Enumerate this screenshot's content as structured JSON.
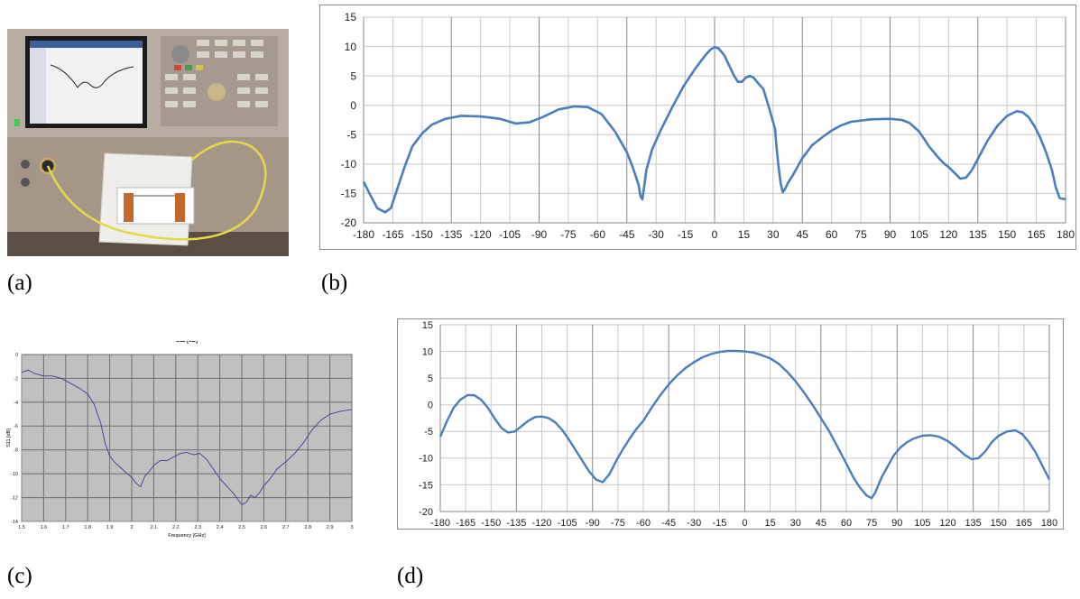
{
  "captions": {
    "a": "(a)",
    "b": "(b)",
    "c": "(c)",
    "d": "(d)"
  },
  "colors": {
    "line": "#4a7ebb",
    "s11_line": "#3d3d9a",
    "s11_bg": "#c0c0c0",
    "grid": "#c8c8c8"
  },
  "chart_data": [
    {
      "id": "b",
      "type": "line",
      "title": "",
      "xlabel": "",
      "ylabel": "",
      "xlim": [
        -180,
        180
      ],
      "ylim": [
        -20,
        15
      ],
      "xticks": [
        -180,
        -165,
        -150,
        -135,
        -120,
        -105,
        -90,
        -75,
        -60,
        -45,
        -30,
        -15,
        0,
        15,
        30,
        45,
        60,
        75,
        90,
        105,
        120,
        135,
        150,
        165,
        180
      ],
      "yticks": [
        15,
        10,
        5,
        0,
        -5,
        -10,
        -15,
        -20
      ],
      "grid": true,
      "series": [
        {
          "x": [
            -180,
            -177,
            -173,
            -169,
            -166,
            -163,
            -159,
            -155,
            -150,
            -145,
            -138,
            -130,
            -120,
            -110,
            -102,
            -95,
            -88,
            -80,
            -72,
            -65,
            -58,
            -51,
            -45,
            -42,
            -39,
            -38,
            -37,
            -35,
            -32,
            -28,
            -22,
            -16,
            -10,
            -5,
            -2,
            0,
            2,
            5,
            8,
            10,
            12,
            14,
            16,
            18,
            20,
            23,
            25,
            28,
            31,
            32,
            33,
            34,
            35,
            36,
            38,
            40,
            45,
            50,
            55,
            60,
            65,
            70,
            80,
            90,
            96,
            100,
            105,
            110,
            115,
            118,
            120,
            123,
            126,
            129,
            132,
            136,
            140,
            145,
            150,
            155,
            158,
            161,
            164,
            167,
            170,
            173,
            175,
            177,
            180
          ],
          "y": [
            -13,
            -15,
            -17.5,
            -18.2,
            -17.5,
            -14.5,
            -10.5,
            -7,
            -4.8,
            -3.3,
            -2.3,
            -1.8,
            -1.9,
            -2.3,
            -3.1,
            -2.9,
            -2.0,
            -0.7,
            -0.2,
            -0.3,
            -1.5,
            -4.5,
            -8.0,
            -10.5,
            -13.5,
            -15.5,
            -16.0,
            -11,
            -7.5,
            -4.5,
            -0.5,
            3.2,
            6.2,
            8.4,
            9.5,
            9.9,
            9.7,
            8.5,
            6.4,
            5.0,
            4.0,
            4.0,
            4.7,
            5.0,
            4.7,
            3.5,
            2.8,
            -0.5,
            -4.0,
            -8.0,
            -11,
            -13.5,
            -14.8,
            -14.3,
            -13.0,
            -12.0,
            -9.0,
            -6.8,
            -5.5,
            -4.3,
            -3.4,
            -2.8,
            -2.4,
            -2.3,
            -2.5,
            -3.0,
            -4.5,
            -7.0,
            -9.0,
            -10.0,
            -10.5,
            -11.5,
            -12.5,
            -12.3,
            -11.0,
            -8.5,
            -6.0,
            -3.5,
            -1.8,
            -1.0,
            -1.2,
            -2.0,
            -3.5,
            -5.5,
            -8.0,
            -11.0,
            -14.0,
            -15.8,
            -16.0
          ]
        }
      ]
    },
    {
      "id": "c",
      "type": "line",
      "title": "S11 [dB]",
      "xlabel": "Frequency [GHz]",
      "ylabel": "S11 [dB]",
      "xlim": [
        1.5,
        3
      ],
      "ylim": [
        -14,
        0
      ],
      "xticks": [
        "1.5",
        "1.6",
        "1.7",
        "1.8",
        "1.9",
        "2",
        "2.1",
        "2.2",
        "2.3",
        "2.4",
        "2.5",
        "2.6",
        "2.7",
        "2.8",
        "2.9",
        "3"
      ],
      "yticks": [
        "0",
        "-2",
        "-4",
        "-6",
        "-8",
        "-10",
        "-12",
        "-14"
      ],
      "grid": true,
      "series": [
        {
          "x": [
            1.5,
            1.53,
            1.56,
            1.6,
            1.64,
            1.68,
            1.72,
            1.76,
            1.8,
            1.83,
            1.86,
            1.88,
            1.9,
            1.92,
            1.95,
            1.98,
            2.0,
            2.02,
            2.04,
            2.06,
            2.08,
            2.1,
            2.13,
            2.16,
            2.19,
            2.22,
            2.25,
            2.28,
            2.31,
            2.34,
            2.37,
            2.4,
            2.43,
            2.46,
            2.48,
            2.5,
            2.52,
            2.54,
            2.56,
            2.58,
            2.6,
            2.63,
            2.66,
            2.7,
            2.74,
            2.78,
            2.82,
            2.86,
            2.9,
            2.94,
            2.97,
            3.0
          ],
          "y": [
            -1.5,
            -1.3,
            -1.6,
            -1.8,
            -1.8,
            -2.0,
            -2.4,
            -2.8,
            -3.3,
            -4.2,
            -5.8,
            -7.5,
            -8.5,
            -9.0,
            -9.5,
            -10.0,
            -10.3,
            -10.8,
            -11.1,
            -10.2,
            -9.8,
            -9.3,
            -8.9,
            -8.9,
            -8.6,
            -8.3,
            -8.2,
            -8.4,
            -8.3,
            -8.8,
            -9.6,
            -10.4,
            -11.0,
            -11.6,
            -12.1,
            -12.6,
            -12.4,
            -11.8,
            -12.0,
            -11.6,
            -11.0,
            -10.4,
            -9.6,
            -9.0,
            -8.3,
            -7.4,
            -6.3,
            -5.5,
            -5.0,
            -4.8,
            -4.7,
            -4.6
          ]
        }
      ]
    },
    {
      "id": "d",
      "type": "line",
      "title": "",
      "xlabel": "",
      "ylabel": "",
      "xlim": [
        -180,
        180
      ],
      "ylim": [
        -20,
        15
      ],
      "xticks": [
        -180,
        -165,
        -150,
        -135,
        -120,
        -105,
        -90,
        -75,
        -60,
        -45,
        -30,
        -15,
        0,
        15,
        30,
        45,
        60,
        75,
        90,
        105,
        120,
        135,
        150,
        165,
        180
      ],
      "yticks": [
        15,
        10,
        5,
        0,
        -5,
        -10,
        -15,
        -20
      ],
      "grid": true,
      "series": [
        {
          "x": [
            -180,
            -176,
            -172,
            -168,
            -164,
            -160,
            -156,
            -152,
            -148,
            -144,
            -140,
            -136,
            -132,
            -128,
            -124,
            -120,
            -116,
            -112,
            -108,
            -104,
            -100,
            -96,
            -92,
            -88,
            -84,
            -80,
            -76,
            -72,
            -68,
            -64,
            -60,
            -55,
            -50,
            -45,
            -40,
            -35,
            -30,
            -25,
            -20,
            -15,
            -10,
            -5,
            0,
            5,
            10,
            15,
            20,
            25,
            30,
            35,
            40,
            45,
            50,
            55,
            60,
            64,
            68,
            72,
            75,
            77,
            79,
            81,
            84,
            88,
            92,
            96,
            100,
            105,
            110,
            115,
            120,
            125,
            130,
            134,
            138,
            142,
            146,
            150,
            155,
            160,
            164,
            168,
            172,
            176,
            180
          ],
          "y": [
            -6,
            -3,
            -0.5,
            1.0,
            1.8,
            1.8,
            1.0,
            -0.5,
            -2.5,
            -4.3,
            -5.2,
            -5.0,
            -4.0,
            -3.0,
            -2.3,
            -2.2,
            -2.5,
            -3.3,
            -4.7,
            -6.5,
            -8.5,
            -10.5,
            -12.5,
            -14,
            -14.5,
            -13,
            -10.5,
            -8.3,
            -6.3,
            -4.5,
            -3.0,
            -0.5,
            1.8,
            3.8,
            5.5,
            6.9,
            8.0,
            8.9,
            9.5,
            9.9,
            10.1,
            10.1,
            10.0,
            9.8,
            9.3,
            8.7,
            7.7,
            6.2,
            4.4,
            2.3,
            0,
            -2.5,
            -5,
            -8,
            -11,
            -13.5,
            -15.5,
            -17,
            -17.5,
            -16.5,
            -15,
            -13.5,
            -11.8,
            -9.5,
            -8.0,
            -7.0,
            -6.3,
            -5.8,
            -5.7,
            -6.0,
            -6.8,
            -8.0,
            -9.4,
            -10.2,
            -10.0,
            -8.8,
            -7.0,
            -5.8,
            -5.0,
            -4.8,
            -5.5,
            -7.0,
            -9.0,
            -11.5,
            -14.0
          ]
        }
      ]
    }
  ]
}
